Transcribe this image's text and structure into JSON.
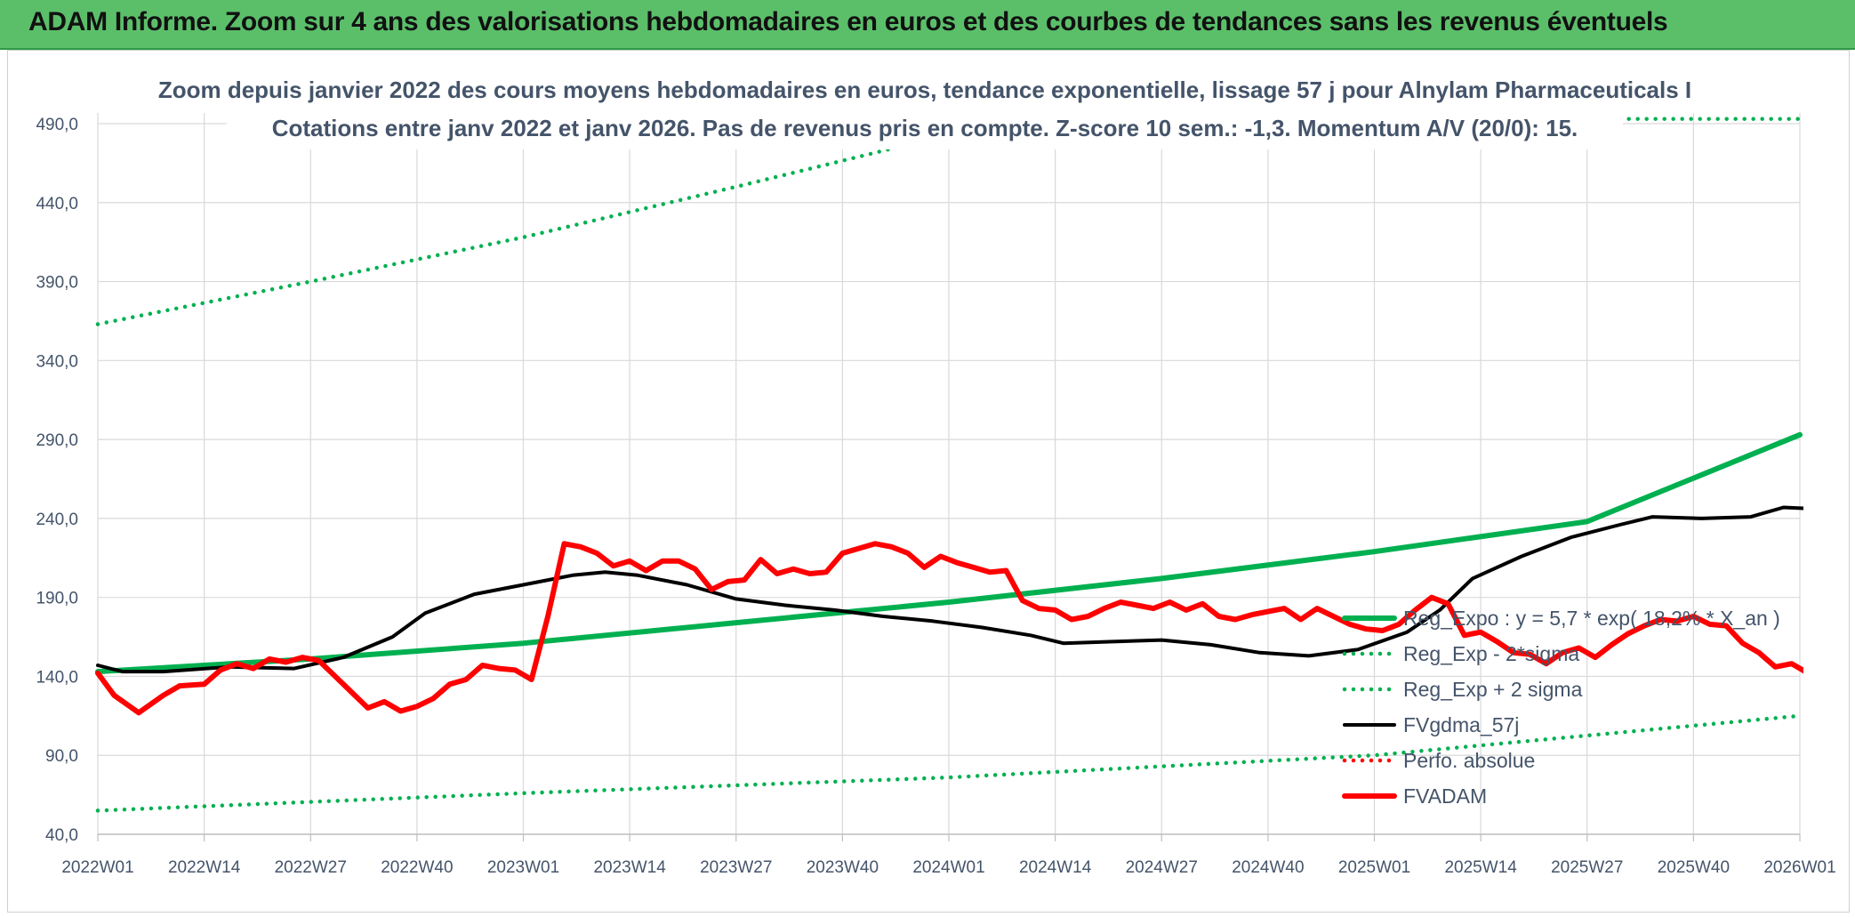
{
  "banner": {
    "title": "ADAM Informe. Zoom sur 4 ans des valorisations hebdomadaires en euros et des courbes de tendances sans les revenus éventuels"
  },
  "colors": {
    "banner_bg": "#5bbf6a",
    "reg_green": "#00b050",
    "fvadam_red": "#ff0000",
    "gdma_black": "#000000",
    "perfo_red": "#ff0000",
    "text": "#44546a",
    "grid": "#d9d9d9"
  },
  "chart_data": {
    "type": "line",
    "title": "Zoom depuis janvier 2022 des cours moyens hebdomadaires en euros, tendance exponentielle, lissage 57 j pour Alnylam Pharmaceuticals I",
    "subtitle": "Cotations entre janv 2022 et janv 2026. Pas de revenus pris en compte. Z-score 10 sem.: -1,3. Momentum A/V (20/0): 15.",
    "x_tick_labels": [
      "2022W01",
      "2022W14",
      "2022W27",
      "2022W40",
      "2023W01",
      "2023W14",
      "2023W27",
      "2023W40",
      "2024W01",
      "2024W14",
      "2024W27",
      "2024W40",
      "2025W01",
      "2025W14",
      "2025W27",
      "2025W40",
      "2026W01"
    ],
    "y_tick_labels": [
      "40,0",
      "90,0",
      "140,0",
      "190,0",
      "240,0",
      "290,0",
      "340,0",
      "390,0",
      "440,0",
      "490,0"
    ],
    "ylim": [
      40,
      490
    ],
    "x_range_weeks": [
      0,
      208
    ],
    "grid": true,
    "legend_position": "bottom-right",
    "series": [
      {
        "name": "Reg_Expo : y = 5,7 * exp( 18,2% *  X_an )",
        "style": "solid-thick",
        "color": "#00b050",
        "points": [
          [
            0,
            143
          ],
          [
            26,
            151
          ],
          [
            52,
            161
          ],
          [
            78,
            174
          ],
          [
            104,
            187
          ],
          [
            130,
            202
          ],
          [
            156,
            219
          ],
          [
            182,
            238
          ],
          [
            208,
            293
          ]
        ]
      },
      {
        "name": "Reg_Exp - 2*sigma",
        "style": "dotted",
        "color": "#00b050",
        "points": [
          [
            0,
            55
          ],
          [
            52,
            66
          ],
          [
            104,
            76
          ],
          [
            156,
            90
          ],
          [
            208,
            115
          ]
        ]
      },
      {
        "name": "Reg_Exp + 2 sigma",
        "style": "dotted",
        "color": "#00b050",
        "points": [
          [
            0,
            363
          ],
          [
            26,
            390
          ],
          [
            52,
            418
          ],
          [
            78,
            450
          ],
          [
            104,
            483
          ],
          [
            106,
            486
          ],
          [
            170,
            550
          ],
          [
            185,
            493
          ],
          [
            208,
            493
          ]
        ]
      },
      {
        "name": "FVgdma_57j",
        "style": "solid",
        "color": "#000000",
        "points": [
          [
            0,
            147
          ],
          [
            3,
            143
          ],
          [
            8,
            143
          ],
          [
            16,
            146
          ],
          [
            24,
            145
          ],
          [
            30,
            152
          ],
          [
            36,
            165
          ],
          [
            40,
            180
          ],
          [
            46,
            192
          ],
          [
            52,
            198
          ],
          [
            58,
            204
          ],
          [
            62,
            206
          ],
          [
            66,
            204
          ],
          [
            72,
            198
          ],
          [
            78,
            189
          ],
          [
            84,
            185
          ],
          [
            90,
            182
          ],
          [
            96,
            178
          ],
          [
            102,
            175
          ],
          [
            108,
            171
          ],
          [
            114,
            166
          ],
          [
            118,
            161
          ],
          [
            124,
            162
          ],
          [
            130,
            163
          ],
          [
            136,
            160
          ],
          [
            142,
            155
          ],
          [
            148,
            153
          ],
          [
            154,
            157
          ],
          [
            160,
            168
          ],
          [
            164,
            182
          ],
          [
            168,
            202
          ],
          [
            174,
            216
          ],
          [
            180,
            228
          ],
          [
            186,
            236
          ],
          [
            190,
            241
          ],
          [
            196,
            240
          ],
          [
            202,
            241
          ],
          [
            206,
            247
          ],
          [
            210,
            246
          ],
          [
            214,
            250
          ],
          [
            220,
            268
          ],
          [
            226,
            293
          ],
          [
            232,
            321
          ],
          [
            236,
            346
          ],
          [
            242,
            362
          ],
          [
            246,
            370
          ],
          [
            250,
            371
          ],
          [
            256,
            366
          ],
          [
            260,
            362
          ],
          [
            265,
            353
          ]
        ]
      },
      {
        "name": "Perfo. absolue",
        "style": "dotted",
        "color": "#ff0000",
        "points": []
      },
      {
        "name": "FVADAM",
        "style": "solid-thick",
        "color": "#ff0000",
        "points": [
          [
            0,
            142
          ],
          [
            2,
            128
          ],
          [
            5,
            117
          ],
          [
            8,
            128
          ],
          [
            10,
            134
          ],
          [
            13,
            135
          ],
          [
            15,
            144
          ],
          [
            17,
            148
          ],
          [
            19,
            145
          ],
          [
            21,
            151
          ],
          [
            23,
            149
          ],
          [
            25,
            152
          ],
          [
            27,
            150
          ],
          [
            29,
            140
          ],
          [
            31,
            130
          ],
          [
            33,
            120
          ],
          [
            35,
            124
          ],
          [
            37,
            118
          ],
          [
            39,
            121
          ],
          [
            41,
            126
          ],
          [
            43,
            135
          ],
          [
            45,
            138
          ],
          [
            47,
            147
          ],
          [
            49,
            145
          ],
          [
            51,
            144
          ],
          [
            53,
            138
          ],
          [
            55,
            178
          ],
          [
            57,
            224
          ],
          [
            59,
            222
          ],
          [
            61,
            218
          ],
          [
            63,
            210
          ],
          [
            65,
            213
          ],
          [
            67,
            207
          ],
          [
            69,
            213
          ],
          [
            71,
            213
          ],
          [
            73,
            208
          ],
          [
            75,
            195
          ],
          [
            77,
            200
          ],
          [
            79,
            201
          ],
          [
            81,
            214
          ],
          [
            83,
            205
          ],
          [
            85,
            208
          ],
          [
            87,
            205
          ],
          [
            89,
            206
          ],
          [
            91,
            218
          ],
          [
            93,
            221
          ],
          [
            95,
            224
          ],
          [
            97,
            222
          ],
          [
            99,
            218
          ],
          [
            101,
            209
          ],
          [
            103,
            216
          ],
          [
            105,
            212
          ],
          [
            107,
            209
          ],
          [
            109,
            206
          ],
          [
            111,
            207
          ],
          [
            113,
            188
          ],
          [
            115,
            183
          ],
          [
            117,
            182
          ],
          [
            119,
            176
          ],
          [
            121,
            178
          ],
          [
            123,
            183
          ],
          [
            125,
            187
          ],
          [
            127,
            185
          ],
          [
            129,
            183
          ],
          [
            131,
            187
          ],
          [
            133,
            182
          ],
          [
            135,
            186
          ],
          [
            137,
            178
          ],
          [
            139,
            176
          ],
          [
            141,
            179
          ],
          [
            143,
            181
          ],
          [
            145,
            183
          ],
          [
            147,
            176
          ],
          [
            149,
            183
          ],
          [
            151,
            178
          ],
          [
            153,
            173
          ],
          [
            155,
            170
          ],
          [
            157,
            169
          ],
          [
            159,
            173
          ],
          [
            161,
            182
          ],
          [
            163,
            190
          ],
          [
            165,
            186
          ],
          [
            167,
            166
          ],
          [
            169,
            168
          ],
          [
            171,
            162
          ],
          [
            173,
            155
          ],
          [
            175,
            154
          ],
          [
            177,
            148
          ],
          [
            179,
            155
          ],
          [
            181,
            158
          ],
          [
            183,
            152
          ],
          [
            185,
            160
          ],
          [
            187,
            167
          ],
          [
            189,
            172
          ],
          [
            191,
            176
          ],
          [
            193,
            175
          ],
          [
            195,
            178
          ],
          [
            197,
            173
          ],
          [
            199,
            172
          ],
          [
            201,
            161
          ],
          [
            203,
            155
          ],
          [
            205,
            146
          ],
          [
            207,
            148
          ],
          [
            209,
            142
          ],
          [
            211,
            138
          ],
          [
            213,
            136
          ],
          [
            215,
            141
          ],
          [
            217,
            142
          ],
          [
            219,
            141
          ],
          [
            221,
            139
          ],
          [
            223,
            137
          ],
          [
            225,
            140
          ],
          [
            227,
            142
          ],
          [
            229,
            138
          ],
          [
            231,
            138
          ],
          [
            233,
            141
          ],
          [
            235,
            149
          ],
          [
            237,
            222
          ],
          [
            239,
            231
          ],
          [
            241,
            226
          ],
          [
            243,
            220
          ],
          [
            245,
            229
          ],
          [
            247,
            244
          ],
          [
            249,
            250
          ],
          [
            251,
            248
          ],
          [
            253,
            238
          ],
          [
            255,
            228
          ],
          [
            257,
            233
          ],
          [
            259,
            244
          ],
          [
            261,
            246
          ],
          [
            263,
            252
          ],
          [
            265,
            268
          ]
        ]
      }
    ]
  }
}
